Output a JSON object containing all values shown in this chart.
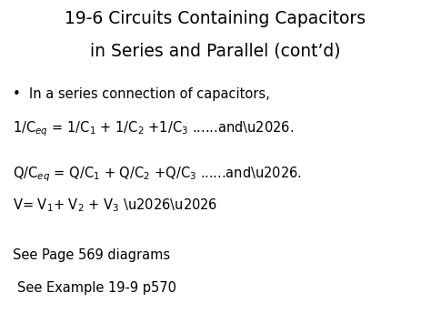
{
  "title_line1": "19-6 Circuits Containing Capacitors",
  "title_line2": "in Series and Parallel (cont’d)",
  "bg_color": "#ffffff",
  "text_color": "#000000",
  "title_fontsize": 13.5,
  "body_fontsize": 10.5,
  "figsize": [
    4.74,
    3.55
  ],
  "dpi": 100
}
